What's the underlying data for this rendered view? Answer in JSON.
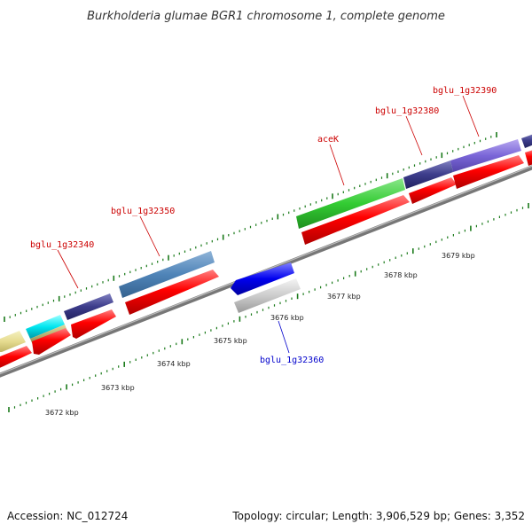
{
  "title": "Burkholderia glumae BGR1 chromosome 1, complete genome",
  "footer": {
    "accession": "Accession: NC_012724",
    "summary": "Topology: circular; Length: 3,906,529 bp; Genes: 3,352"
  },
  "ruler": [
    {
      "label": "3672 kbp",
      "kbp": 3672
    },
    {
      "label": "3673 kbp",
      "kbp": 3673
    },
    {
      "label": "3674 kbp",
      "kbp": 3674
    },
    {
      "label": "3675 kbp",
      "kbp": 3675
    },
    {
      "label": "3676 kbp",
      "kbp": 3676
    },
    {
      "label": "3677 kbp",
      "kbp": 3677
    },
    {
      "label": "3678 kbp",
      "kbp": 3678
    },
    {
      "label": "3679 kbp",
      "kbp": 3679
    }
  ],
  "gene_labels": [
    {
      "text": "bglu_1g32340",
      "strand": "forward"
    },
    {
      "text": "bglu_1g32350",
      "strand": "forward"
    },
    {
      "text": "aceK",
      "strand": "forward"
    },
    {
      "text": "bglu_1g32380",
      "strand": "forward"
    },
    {
      "text": "bglu_1g32390",
      "strand": "forward"
    },
    {
      "text": "bglu_1g32360",
      "strand": "reverse"
    }
  ],
  "colors": {
    "forward_label": "#cc0000",
    "reverse_label": "#0000cc",
    "cds": "#ff0000",
    "backbone": "#808080",
    "ticks": "#1a7a1a"
  }
}
